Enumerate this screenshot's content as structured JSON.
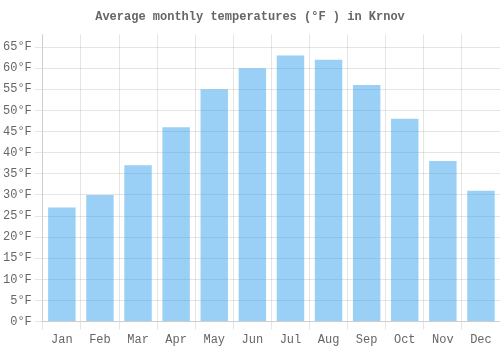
{
  "chart_data": {
    "type": "bar",
    "title": "Average monthly temperatures (°F ) in Krnov",
    "categories": [
      "Jan",
      "Feb",
      "Mar",
      "Apr",
      "May",
      "Jun",
      "Jul",
      "Aug",
      "Sep",
      "Oct",
      "Nov",
      "Dec"
    ],
    "values": [
      27,
      30,
      37,
      46,
      55,
      60,
      63,
      62,
      56,
      48,
      38,
      31
    ],
    "ylim": [
      0,
      68
    ],
    "yticks": [
      {
        "value": 0,
        "label": "0°F"
      },
      {
        "value": 5,
        "label": "5°F"
      },
      {
        "value": 10,
        "label": "10°F"
      },
      {
        "value": 15,
        "label": "15°F"
      },
      {
        "value": 20,
        "label": "20°F"
      },
      {
        "value": 25,
        "label": "25°F"
      },
      {
        "value": 30,
        "label": "30°F"
      },
      {
        "value": 35,
        "label": "35°F"
      },
      {
        "value": 40,
        "label": "40°F"
      },
      {
        "value": 45,
        "label": "45°F"
      },
      {
        "value": 50,
        "label": "50°F"
      },
      {
        "value": 55,
        "label": "55°F"
      },
      {
        "value": 60,
        "label": "60°F"
      },
      {
        "value": 65,
        "label": "65°F"
      }
    ],
    "grid": true
  }
}
